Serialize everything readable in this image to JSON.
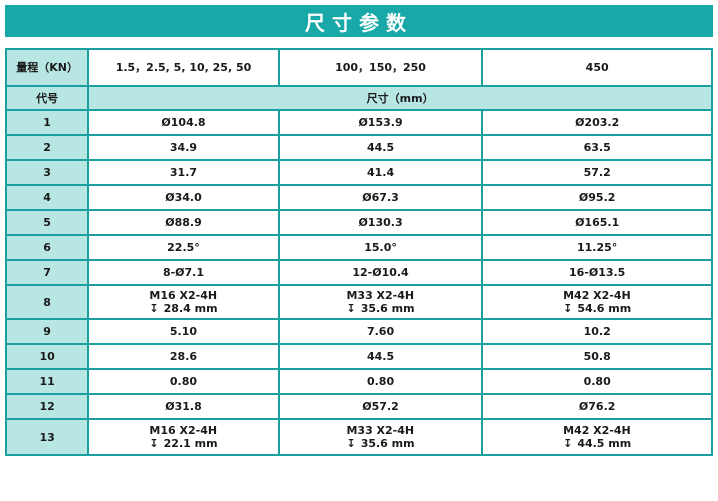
{
  "title": "尺寸参数",
  "header": {
    "range_label": "量程（KN）",
    "ranges": [
      "1.5，2.5, 5, 10, 25, 50",
      "100，150，250",
      "450"
    ],
    "code_label": "代号",
    "size_label": "尺寸（mm）"
  },
  "rows": [
    {
      "code": "1",
      "a": "Ø104.8",
      "b": "Ø153.9",
      "c": "Ø203.2"
    },
    {
      "code": "2",
      "a": "34.9",
      "b": "44.5",
      "c": "63.5"
    },
    {
      "code": "3",
      "a": "31.7",
      "b": "41.4",
      "c": "57.2"
    },
    {
      "code": "4",
      "a": "Ø34.0",
      "b": "Ø67.3",
      "c": "Ø95.2"
    },
    {
      "code": "5",
      "a": "Ø88.9",
      "b": "Ø130.3",
      "c": "Ø165.1"
    },
    {
      "code": "6",
      "a": "22.5°",
      "b": "15.0°",
      "c": "11.25°"
    },
    {
      "code": "7",
      "a": "8-Ø7.1",
      "b": "12-Ø10.4",
      "c": "16-Ø13.5"
    },
    {
      "code": "8",
      "a": {
        "line1": "M16 X2-4H",
        "line2": "28.4 mm"
      },
      "b": {
        "line1": "M33 X2-4H",
        "line2": "35.6 mm"
      },
      "c": {
        "line1": "M42 X2-4H",
        "line2": "54.6 mm"
      }
    },
    {
      "code": "9",
      "a": "5.10",
      "b": "7.60",
      "c": "10.2"
    },
    {
      "code": "10",
      "a": "28.6",
      "b": "44.5",
      "c": "50.8"
    },
    {
      "code": "11",
      "a": "0.80",
      "b": "0.80",
      "c": "0.80"
    },
    {
      "code": "12",
      "a": "Ø31.8",
      "b": "Ø57.2",
      "c": "Ø76.2"
    },
    {
      "code": "13",
      "a": {
        "line1": "M16 X2-4H",
        "line2": "22.1 mm"
      },
      "b": {
        "line1": "M33 X2-4H",
        "line2": "35.6 mm"
      },
      "c": {
        "line1": "M42 X2-4H",
        "line2": "44.5 mm"
      }
    }
  ],
  "depth_symbol": "↧",
  "colors": {
    "title_bg": "#18a8a8",
    "header_shade": "#b8e6e3",
    "border": "#1aa0a0"
  }
}
